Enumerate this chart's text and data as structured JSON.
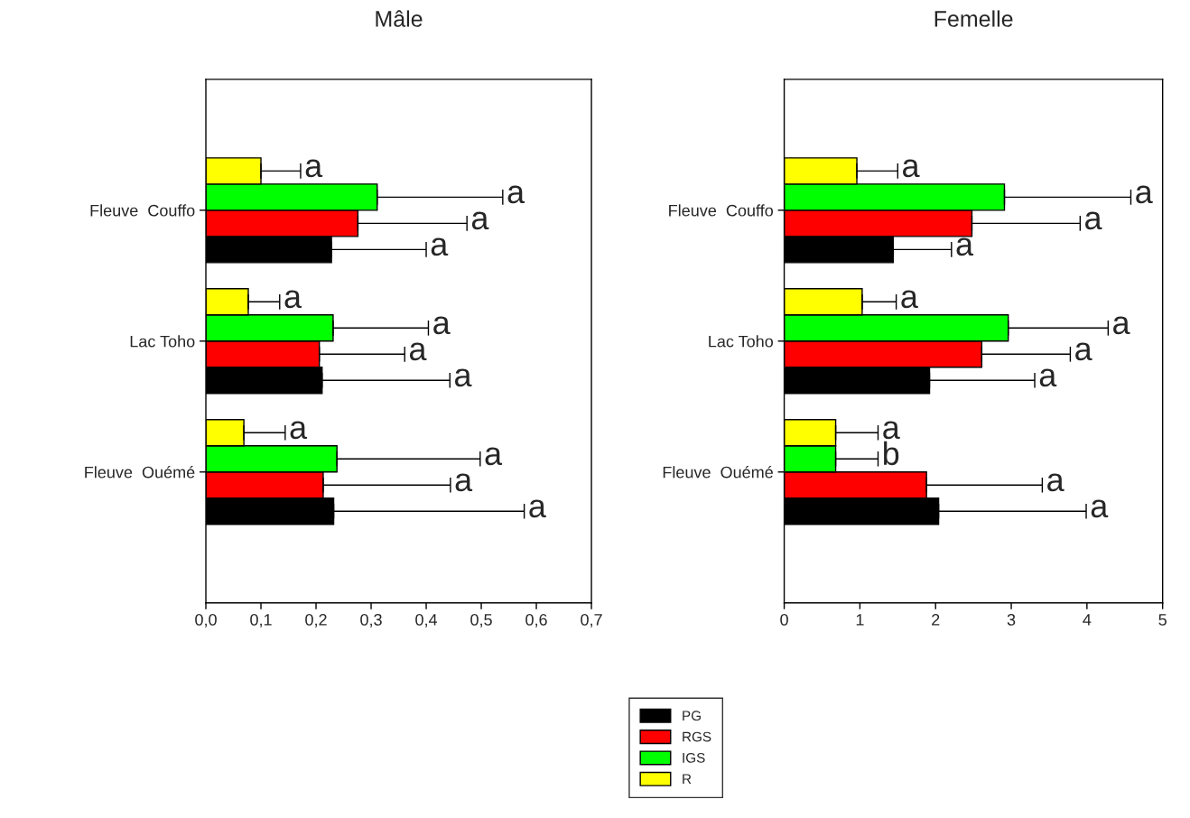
{
  "chart_data": [
    {
      "type": "bar",
      "title": "Mâle",
      "orientation": "horizontal",
      "legend": "bottom",
      "categories": [
        "Fleuve  Couffo",
        "Lac Toho",
        "Fleuve  Ouémé"
      ],
      "series": [
        {
          "name": "PG",
          "color": "#000000",
          "values": [
            0.228,
            0.211,
            0.232
          ],
          "errors": [
            [
              0.228,
              0.4
            ],
            [
              0.211,
              0.443
            ],
            [
              0.232,
              0.578
            ]
          ]
        },
        {
          "name": "RGS",
          "color": "#ff0000",
          "values": [
            0.276,
            0.206,
            0.213
          ],
          "errors": [
            [
              0.276,
              0.474
            ],
            [
              0.206,
              0.361
            ],
            [
              0.213,
              0.444
            ]
          ]
        },
        {
          "name": "IGS",
          "color": "#00ff00",
          "values": [
            0.311,
            0.231,
            0.238
          ],
          "errors": [
            [
              0.311,
              0.539
            ],
            [
              0.231,
              0.404
            ],
            [
              0.238,
              0.498
            ]
          ]
        },
        {
          "name": "R",
          "color": "#ffff00",
          "values": [
            0.1,
            0.077,
            0.069
          ],
          "errors": [
            [
              0.1,
              0.172
            ],
            [
              0.077,
              0.134
            ],
            [
              0.069,
              0.144
            ]
          ]
        }
      ],
      "annotations": [
        "a",
        "a",
        "a",
        "a",
        "a",
        "a",
        "a",
        "a",
        "a",
        "a",
        "a",
        "a"
      ],
      "xlim": [
        0,
        0.7
      ],
      "xticks": [
        {
          "value": 0,
          "label": "0,0"
        },
        {
          "value": 0.1,
          "label": "0,1"
        },
        {
          "value": 0.2,
          "label": "0,2"
        },
        {
          "value": 0.3,
          "label": "0,3"
        },
        {
          "value": 0.4,
          "label": "0,4"
        },
        {
          "value": 0.5,
          "label": "0,5"
        },
        {
          "value": 0.6,
          "label": "0,6"
        },
        {
          "value": 0.7,
          "label": "0,7"
        }
      ]
    },
    {
      "type": "bar",
      "title": "Femelle",
      "orientation": "horizontal",
      "categories": [
        "Fleuve  Couffo",
        "Lac Toho",
        "Fleuve  Ouémé"
      ],
      "series": [
        {
          "color": "#000000",
          "values": [
            1.44,
            1.92,
            2.04
          ],
          "errors": [
            [
              1.44,
              2.21
            ],
            [
              1.92,
              3.31
            ],
            [
              2.04,
              3.99
            ]
          ]
        },
        {
          "color": "#ff0000",
          "values": [
            2.48,
            2.61,
            1.88
          ],
          "errors": [
            [
              2.48,
              3.91
            ],
            [
              2.61,
              3.78
            ],
            [
              1.88,
              3.41
            ]
          ]
        },
        {
          "color": "#00ff00",
          "values": [
            2.91,
            2.96,
            0.68
          ],
          "errors": [
            [
              2.91,
              4.58
            ],
            [
              2.96,
              4.28
            ],
            [
              0.68,
              1.24
            ]
          ]
        },
        {
          "color": "#ffff00",
          "values": [
            0.96,
            1.03,
            0.68
          ],
          "errors": [
            [
              0.96,
              1.5
            ],
            [
              1.03,
              1.48
            ],
            [
              0.68,
              1.24
            ]
          ]
        }
      ],
      "annotations": [
        "a",
        "a",
        "a",
        "a",
        "a",
        "a",
        "a",
        "a",
        "a",
        "a",
        "b",
        "a"
      ],
      "xlim": [
        0,
        5
      ],
      "xticks": [
        0,
        1,
        2,
        3,
        4,
        5
      ]
    }
  ]
}
